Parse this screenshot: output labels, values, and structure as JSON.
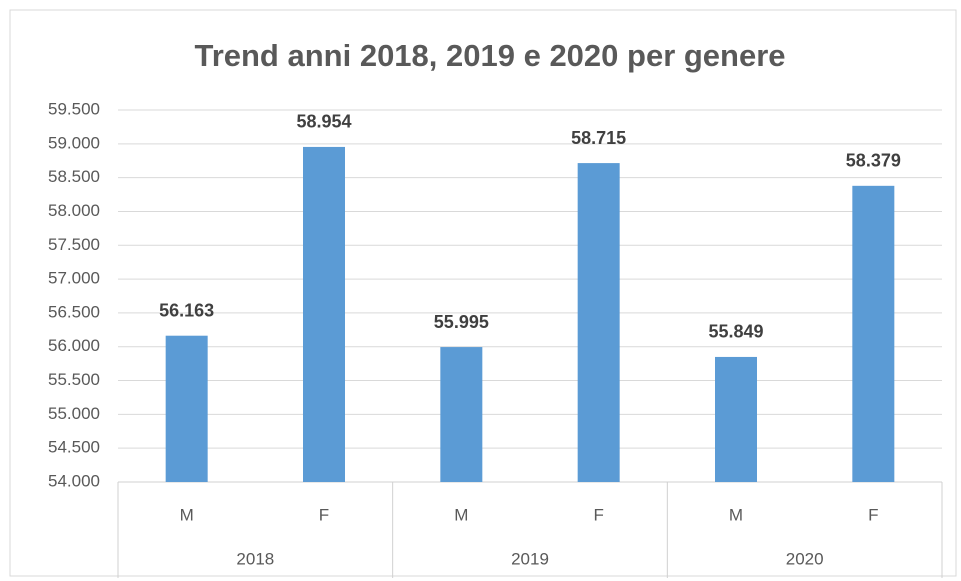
{
  "chart_data": {
    "type": "bar",
    "title": "Trend anni 2018, 2019 e 2020 per genere",
    "categories": [
      "M",
      "F",
      "M",
      "F",
      "M",
      "F"
    ],
    "groups": [
      "2018",
      "2019",
      "2020"
    ],
    "values": [
      56163,
      58954,
      55995,
      58715,
      55849,
      58379
    ],
    "value_labels": [
      "56.163",
      "58.954",
      "55.995",
      "58.715",
      "55.849",
      "58.379"
    ],
    "color": "#5b9bd5",
    "ylim": [
      54000,
      59500
    ],
    "yticks": [
      {
        "value": 54000,
        "label": "54.000"
      },
      {
        "value": 54500,
        "label": "54.500"
      },
      {
        "value": 55000,
        "label": "55.000"
      },
      {
        "value": 55500,
        "label": "55.500"
      },
      {
        "value": 56000,
        "label": "56.000"
      },
      {
        "value": 56500,
        "label": "56.500"
      },
      {
        "value": 57000,
        "label": "57.000"
      },
      {
        "value": 57500,
        "label": "57.500"
      },
      {
        "value": 58000,
        "label": "58.000"
      },
      {
        "value": 58500,
        "label": "58.500"
      },
      {
        "value": 59000,
        "label": "59.000"
      },
      {
        "value": 59500,
        "label": "59.500"
      }
    ],
    "grid": true
  }
}
